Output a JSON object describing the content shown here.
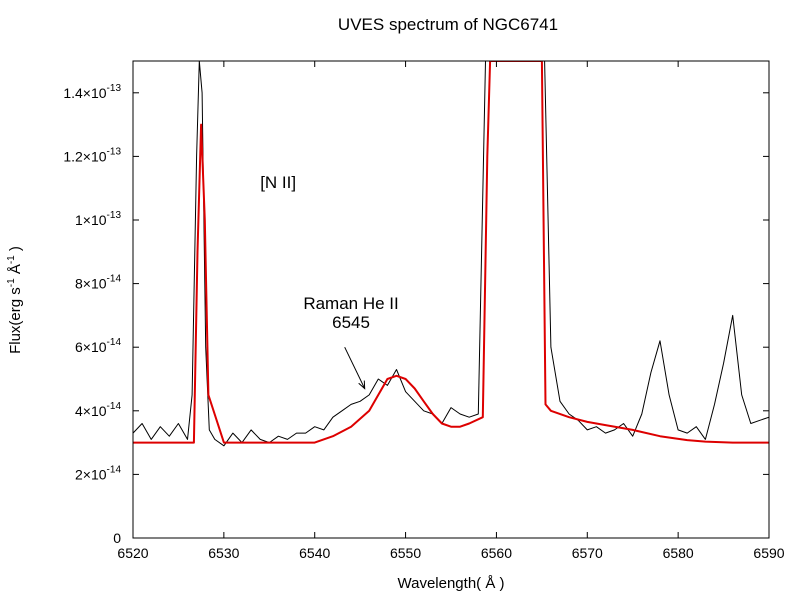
{
  "chart_data": {
    "type": "line",
    "title": "UVES spectrum of NGC6741",
    "xlabel": "Wavelength( Å )",
    "ylabel": {
      "base": "Flux(erg s",
      "sup1": "-1",
      "mid": "  Å",
      "sup2": "-1",
      "end": " )"
    },
    "xlim": [
      6520,
      6590
    ],
    "ylim": [
      0,
      1.5e-13
    ],
    "x_ticks": [
      6520,
      6530,
      6540,
      6550,
      6560,
      6570,
      6580,
      6590
    ],
    "y_ticks": [
      {
        "value": 0,
        "mant": "0",
        "exp": ""
      },
      {
        "value": 2e-14,
        "mant": "2×10",
        "exp": "-14"
      },
      {
        "value": 4e-14,
        "mant": "4×10",
        "exp": "-14"
      },
      {
        "value": 6e-14,
        "mant": "6×10",
        "exp": "-14"
      },
      {
        "value": 8e-14,
        "mant": "8×10",
        "exp": "-14"
      },
      {
        "value": 1e-13,
        "mant": "1×10",
        "exp": "-13"
      },
      {
        "value": 1.2e-13,
        "mant": "1.2×10",
        "exp": "-13"
      },
      {
        "value": 1.4e-13,
        "mant": "1.4×10",
        "exp": "-13"
      }
    ],
    "grid": false,
    "legend": "none",
    "annotations": [
      {
        "text": "[N II]",
        "x": 6534,
        "y": 1.1e-13
      },
      {
        "text": "Raman He II",
        "x": 6544,
        "y": 7.2e-14
      },
      {
        "text": "6545",
        "x": 6544,
        "y": 6.6e-14
      }
    ],
    "arrow": {
      "from": [
        6543.3,
        6e-14
      ],
      "to": [
        6545.5,
        4.7e-14
      ]
    },
    "series": [
      {
        "style": "observed",
        "color": "#000000",
        "x": [
          6520,
          6521,
          6522,
          6523,
          6524,
          6525,
          6526,
          6526.5,
          6527,
          6527.3,
          6527.6,
          6528,
          6528.4,
          6529,
          6530,
          6531,
          6532,
          6533,
          6534,
          6535,
          6536,
          6537,
          6538,
          6539,
          6540,
          6541,
          6542,
          6543,
          6544,
          6545,
          6546,
          6547,
          6548,
          6549,
          6550,
          6551,
          6552,
          6553,
          6554,
          6555,
          6556,
          6557,
          6558,
          6558.8,
          6559.3,
          6559.8,
          6560.3,
          6561,
          6562,
          6563,
          6564,
          6564.8,
          6565.3,
          6566,
          6567,
          6568,
          6569,
          6570,
          6571,
          6572,
          6573,
          6574,
          6575,
          6576,
          6577,
          6578,
          6579,
          6580,
          6581,
          6582,
          6583,
          6584,
          6585,
          6586,
          6587,
          6588,
          6589,
          6590
        ],
        "y": [
          3.3e-14,
          3.6e-14,
          3.1e-14,
          3.5e-14,
          3.2e-14,
          3.6e-14,
          3.1e-14,
          4.5e-14,
          1.2e-13,
          1.5e-13,
          1.4e-13,
          6e-14,
          3.4e-14,
          3.1e-14,
          2.9e-14,
          3.3e-14,
          3e-14,
          3.4e-14,
          3.1e-14,
          3e-14,
          3.2e-14,
          3.1e-14,
          3.3e-14,
          3.3e-14,
          3.5e-14,
          3.4e-14,
          3.8e-14,
          4e-14,
          4.2e-14,
          4.3e-14,
          4.5e-14,
          5e-14,
          4.8e-14,
          5.3e-14,
          4.6e-14,
          4.3e-14,
          4e-14,
          3.9e-14,
          3.6e-14,
          4.1e-14,
          3.9e-14,
          3.8e-14,
          3.9e-14,
          1.5e-13,
          1.5e-13,
          1.5e-13,
          1.5e-13,
          1.5e-13,
          1.5e-13,
          1.5e-13,
          1.5e-13,
          1.5e-13,
          1.5e-13,
          6e-14,
          4.3e-14,
          3.9e-14,
          3.7e-14,
          3.4e-14,
          3.5e-14,
          3.3e-14,
          3.4e-14,
          3.6e-14,
          3.2e-14,
          3.9e-14,
          5.2e-14,
          6.2e-14,
          4.5e-14,
          3.4e-14,
          3.3e-14,
          3.5e-14,
          3.1e-14,
          4.2e-14,
          5.5e-14,
          7e-14,
          4.5e-14,
          3.6e-14,
          3.7e-14,
          3.8e-14
        ]
      },
      {
        "style": "model",
        "color": "#dd0000",
        "x": [
          6520,
          6526.7,
          6527.1,
          6527.5,
          6527.9,
          6528.3,
          6530,
          6535,
          6540,
          6542,
          6544,
          6546,
          6547,
          6548,
          6549,
          6550,
          6551,
          6552,
          6553,
          6554,
          6555,
          6556,
          6557,
          6558.5,
          6559.0,
          6559.3,
          6559.6,
          6560,
          6561,
          6562,
          6563,
          6564,
          6564.6,
          6565,
          6565.4,
          6566,
          6568,
          6570,
          6572,
          6575,
          6578,
          6581,
          6583,
          6586,
          6590
        ],
        "y": [
          3e-14,
          3e-14,
          9e-14,
          1.3e-13,
          1e-13,
          4.5e-14,
          3e-14,
          3e-14,
          3e-14,
          3.2e-14,
          3.5e-14,
          4e-14,
          4.5e-14,
          5e-14,
          5.1e-14,
          5e-14,
          4.7e-14,
          4.3e-14,
          3.9e-14,
          3.6e-14,
          3.5e-14,
          3.5e-14,
          3.6e-14,
          3.8e-14,
          1.2e-13,
          1.5e-13,
          1.5e-13,
          1.5e-13,
          1.5e-13,
          1.5e-13,
          1.5e-13,
          1.5e-13,
          1.5e-13,
          1.5e-13,
          4.2e-14,
          4e-14,
          3.8e-14,
          3.65e-14,
          3.55e-14,
          3.4e-14,
          3.2e-14,
          3.08e-14,
          3.03e-14,
          3e-14,
          3e-14
        ]
      }
    ]
  }
}
